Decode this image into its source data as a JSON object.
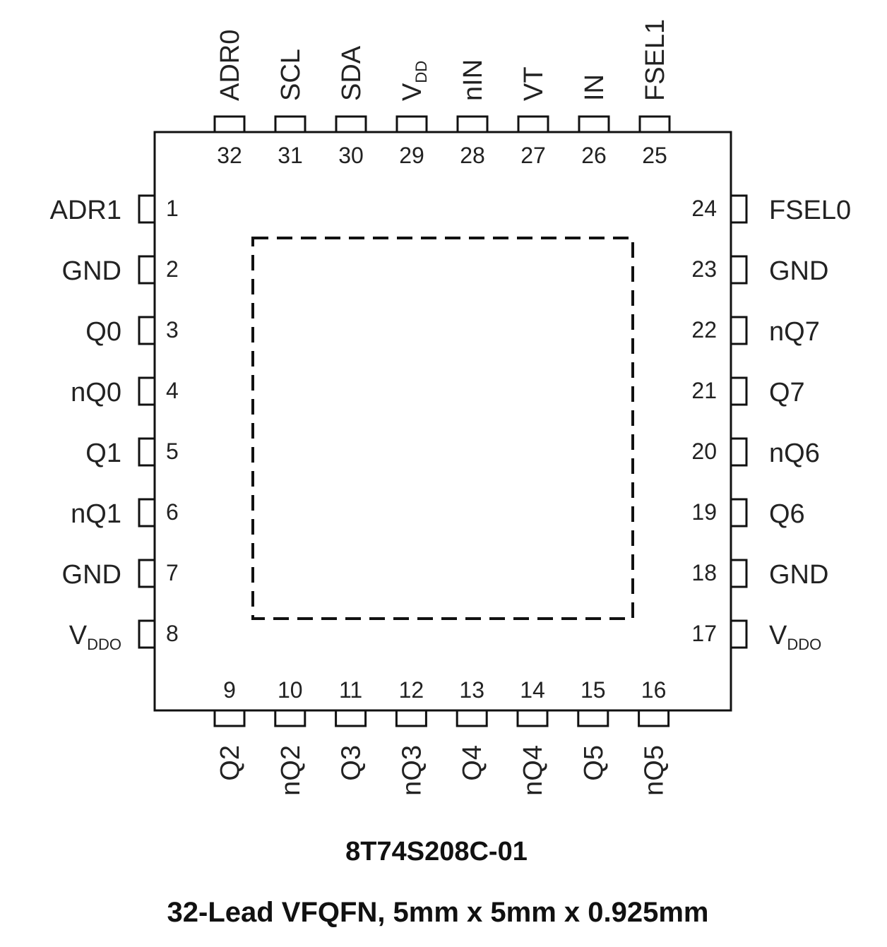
{
  "package": {
    "part_number": "8T74S208C-01",
    "description": "32-Lead VFQFN, 5mm x 5mm x 0.925mm"
  },
  "pins": {
    "left": [
      {
        "num": "1",
        "label": "ADR1"
      },
      {
        "num": "2",
        "label": "GND"
      },
      {
        "num": "3",
        "label": "Q0"
      },
      {
        "num": "4",
        "label": "nQ0"
      },
      {
        "num": "5",
        "label": "Q1"
      },
      {
        "num": "6",
        "label": "nQ1"
      },
      {
        "num": "7",
        "label": "GND"
      },
      {
        "num": "8",
        "label": "V",
        "sub": "DDO"
      }
    ],
    "bottom": [
      {
        "num": "9",
        "label": "Q2"
      },
      {
        "num": "10",
        "label": "nQ2"
      },
      {
        "num": "11",
        "label": "Q3"
      },
      {
        "num": "12",
        "label": "nQ3"
      },
      {
        "num": "13",
        "label": "Q4"
      },
      {
        "num": "14",
        "label": "nQ4"
      },
      {
        "num": "15",
        "label": "Q5"
      },
      {
        "num": "16",
        "label": "nQ5"
      }
    ],
    "right": [
      {
        "num": "17",
        "label": "V",
        "sub": "DDO"
      },
      {
        "num": "18",
        "label": "GND"
      },
      {
        "num": "19",
        "label": "Q6"
      },
      {
        "num": "20",
        "label": "nQ6"
      },
      {
        "num": "21",
        "label": "Q7"
      },
      {
        "num": "22",
        "label": "nQ7"
      },
      {
        "num": "23",
        "label": "GND"
      },
      {
        "num": "24",
        "label": "FSEL0"
      }
    ],
    "top": [
      {
        "num": "25",
        "label": "FSEL1"
      },
      {
        "num": "26",
        "label": "IN"
      },
      {
        "num": "27",
        "label": "VT"
      },
      {
        "num": "28",
        "label": "nIN"
      },
      {
        "num": "29",
        "label": "V",
        "sub": "DD"
      },
      {
        "num": "30",
        "label": "SDA"
      },
      {
        "num": "31",
        "label": "SCL"
      },
      {
        "num": "32",
        "label": "ADR0"
      }
    ]
  }
}
